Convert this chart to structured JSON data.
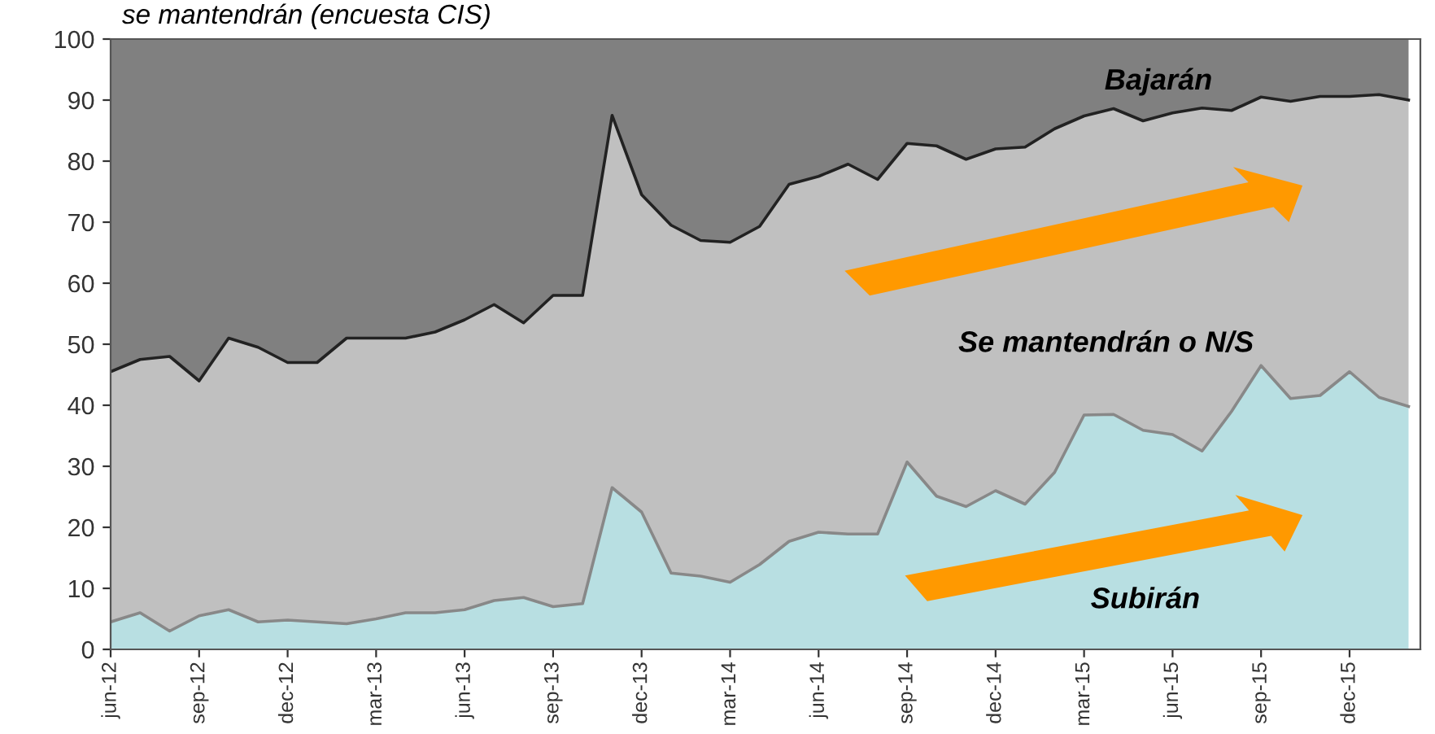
{
  "chart_data": {
    "type": "area",
    "stacked": true,
    "title": "se mantendrán (encuesta CIS)",
    "categories": [
      "jun-12",
      null,
      null,
      "sep-12",
      null,
      null,
      "dec-12",
      null,
      null,
      "mar-13",
      null,
      null,
      "jun-13",
      null,
      null,
      "sep-13",
      null,
      null,
      "dec-13",
      null,
      null,
      "mar-14",
      null,
      null,
      "jun-14",
      null,
      null,
      "sep-14",
      null,
      null,
      "dec-14",
      null,
      null,
      "mar-15",
      null,
      null,
      "jun-15",
      null,
      null,
      "sep-15",
      null,
      null,
      "dec-15",
      null,
      null
    ],
    "series": [
      {
        "name": "Subirán",
        "color": "#b8dfe2",
        "values": [
          4.5,
          6.0,
          3.0,
          5.5,
          6.5,
          4.5,
          4.8,
          4.5,
          4.2,
          5.0,
          6.0,
          6.0,
          6.5,
          8.0,
          8.5,
          7.0,
          7.5,
          26.5,
          22.5,
          12.5,
          12.0,
          11.0,
          13.9,
          17.7,
          19.2,
          18.9,
          18.9,
          30.7,
          25.1,
          23.4,
          26.0,
          23.8,
          29.0,
          38.4,
          38.5,
          35.9,
          35.2,
          32.5,
          39.0,
          46.5,
          41.1,
          41.6,
          45.5,
          41.3,
          39.8
        ]
      },
      {
        "name": "Se mantendrán o N/S",
        "color": "#c0c0c0",
        "values": [
          41.0,
          41.5,
          45.0,
          38.5,
          44.5,
          45.0,
          42.2,
          42.5,
          46.8,
          46.0,
          45.0,
          46.0,
          47.5,
          48.5,
          45.0,
          51.0,
          50.5,
          61.0,
          52.0,
          57.0,
          55.0,
          55.7,
          55.4,
          58.5,
          58.3,
          60.6,
          58.1,
          52.2,
          57.4,
          56.9,
          56.0,
          58.5,
          56.3,
          49.0,
          50.1,
          50.7,
          52.7,
          56.2,
          49.3,
          44.0,
          48.7,
          49.0,
          45.1,
          49.6,
          50.2
        ]
      },
      {
        "name": "Bajarán",
        "color": "#808080",
        "values": [
          54.5,
          52.5,
          52.0,
          56.0,
          49.0,
          50.5,
          53.0,
          53.0,
          49.0,
          49.0,
          49.0,
          48.0,
          46.0,
          43.5,
          46.5,
          42.0,
          42.0,
          12.5,
          25.5,
          30.5,
          33.0,
          33.3,
          30.7,
          23.8,
          22.5,
          20.5,
          23.0,
          17.1,
          17.5,
          19.7,
          18.0,
          17.7,
          14.7,
          12.6,
          11.4,
          13.4,
          12.1,
          11.3,
          11.7,
          9.5,
          10.2,
          9.4,
          9.4,
          9.1,
          10.0
        ]
      }
    ],
    "ylim": [
      0,
      100
    ],
    "yticks": [
      0,
      10,
      20,
      30,
      40,
      50,
      60,
      70,
      80,
      90,
      100
    ],
    "grid": false
  }
}
